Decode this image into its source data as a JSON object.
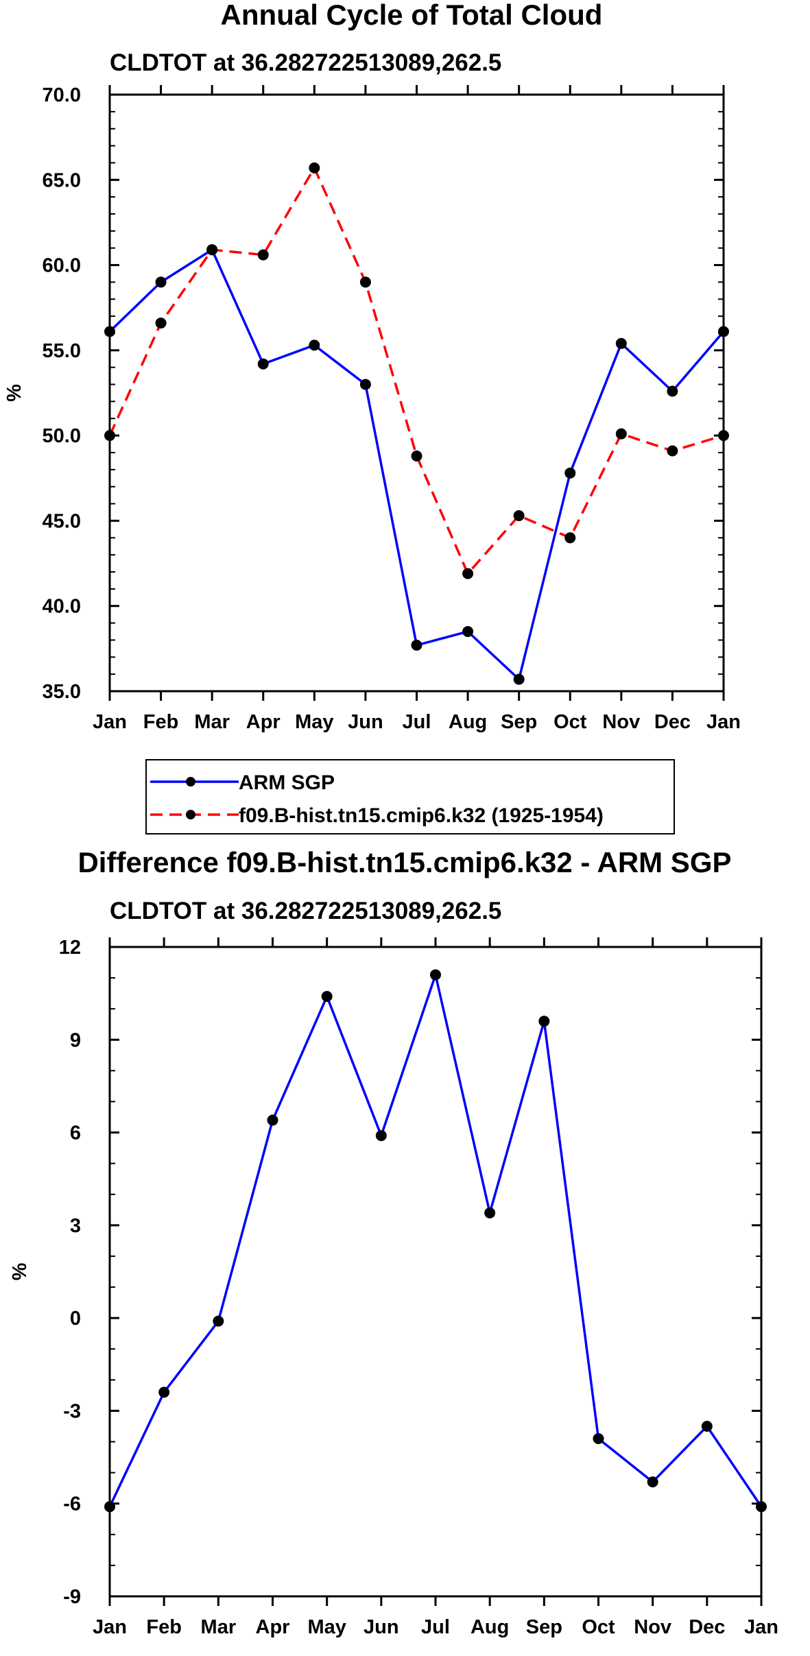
{
  "chart_data": [
    {
      "type": "line",
      "title": "Annual Cycle of Total Cloud",
      "subtitle": "CLDTOT at 36.282722513089,262.5",
      "xlabel": "",
      "ylabel": "%",
      "categories": [
        "Jan",
        "Feb",
        "Mar",
        "Apr",
        "May",
        "Jun",
        "Jul",
        "Aug",
        "Sep",
        "Oct",
        "Nov",
        "Dec",
        "Jan"
      ],
      "ylim": [
        35.0,
        70.0
      ],
      "yticks": [
        "35.0",
        "40.0",
        "45.0",
        "50.0",
        "55.0",
        "60.0",
        "65.0",
        "70.0"
      ],
      "series": [
        {
          "name": "ARM SGP",
          "color": "#0000ff",
          "style": "solid",
          "values": [
            56.1,
            59.0,
            60.9,
            54.2,
            55.3,
            53.0,
            37.7,
            38.5,
            35.7,
            47.8,
            55.4,
            52.6,
            56.1
          ]
        },
        {
          "name": "f09.B-hist.tn15.cmip6.k32 (1925-1954)",
          "color": "#ff0000",
          "style": "dashed",
          "values": [
            50.0,
            56.6,
            60.9,
            60.6,
            65.7,
            59.0,
            48.8,
            41.9,
            45.3,
            44.0,
            50.1,
            49.1,
            50.0
          ]
        }
      ],
      "legend": [
        "ARM SGP",
        "f09.B-hist.tn15.cmip6.k32 (1925-1954)"
      ],
      "legend_position": "bottom"
    },
    {
      "type": "line",
      "title": "Difference f09.B-hist.tn15.cmip6.k32 - ARM SGP",
      "subtitle": "CLDTOT at 36.282722513089,262.5",
      "xlabel": "",
      "ylabel": "%",
      "categories": [
        "Jan",
        "Feb",
        "Mar",
        "Apr",
        "May",
        "Jun",
        "Jul",
        "Aug",
        "Sep",
        "Oct",
        "Nov",
        "Dec",
        "Jan"
      ],
      "ylim": [
        -9,
        12
      ],
      "yticks": [
        "-9",
        "-6",
        "-3",
        "0",
        "3",
        "6",
        "9",
        "12"
      ],
      "series": [
        {
          "name": "Difference",
          "color": "#0000ff",
          "style": "solid",
          "values": [
            -6.1,
            -2.4,
            -0.1,
            6.4,
            10.4,
            5.9,
            11.1,
            3.4,
            9.6,
            -3.9,
            -5.3,
            -3.5,
            -6.1
          ]
        }
      ]
    }
  ]
}
